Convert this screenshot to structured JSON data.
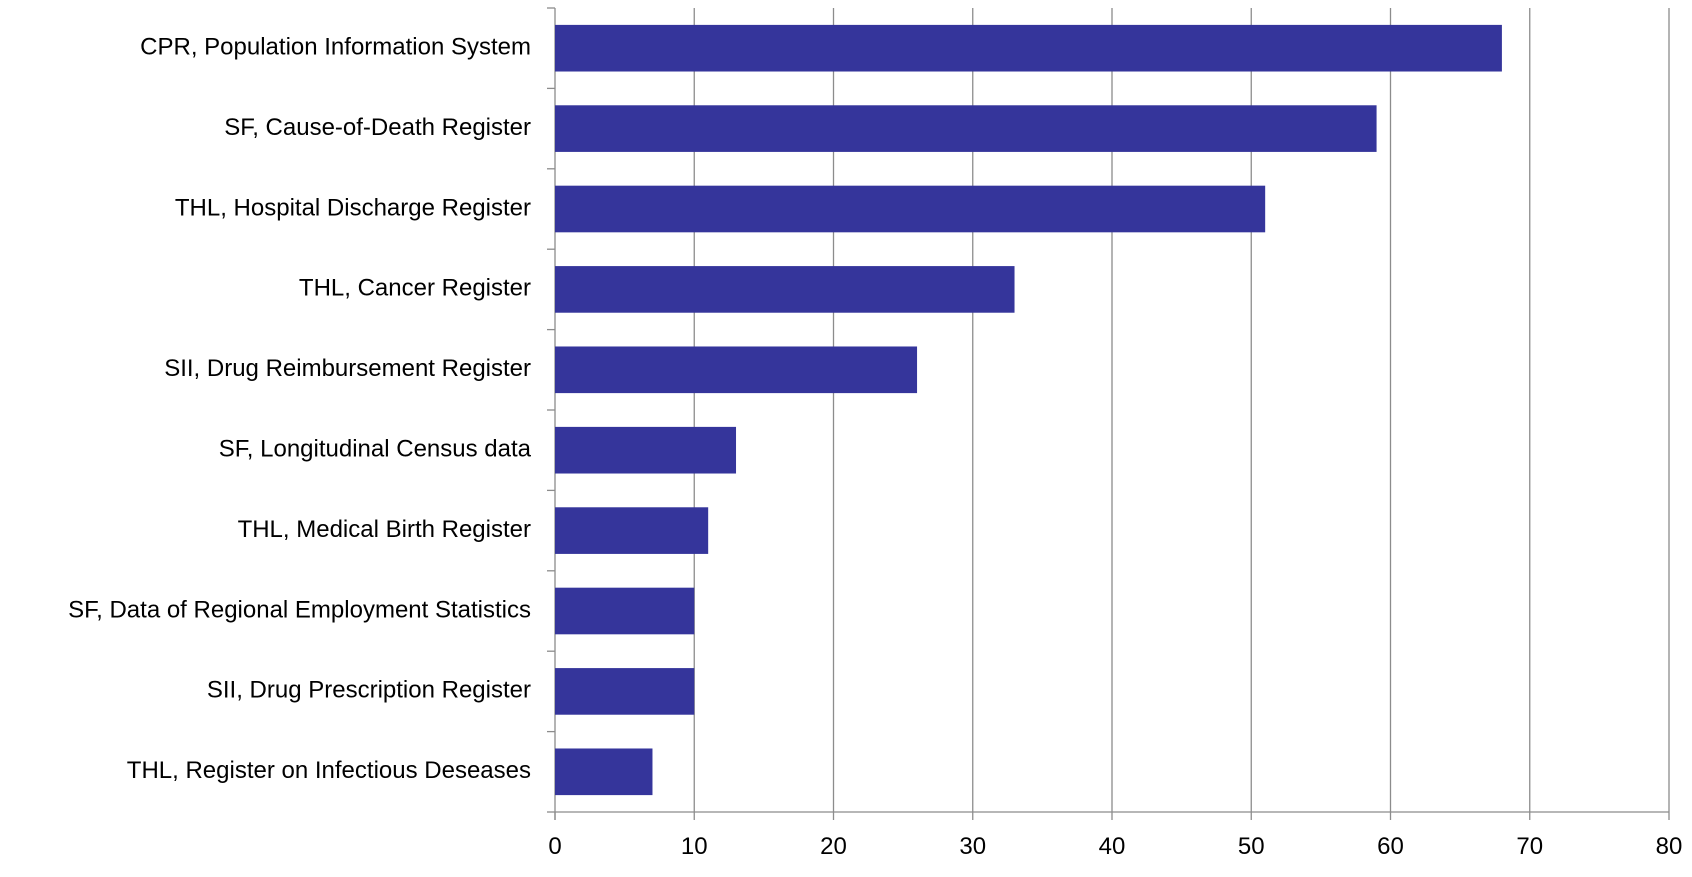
{
  "chart_data": {
    "type": "bar",
    "orientation": "horizontal",
    "title": "",
    "xlabel": "",
    "ylabel": "",
    "categories": [
      "CPR, Population Information System",
      "SF, Cause-of-Death Register",
      "THL, Hospital Discharge Register",
      "THL, Cancer Register",
      "SII, Drug Reimbursement Register",
      "SF, Longitudinal Census data",
      "THL, Medical Birth Register",
      "SF, Data of Regional Employment Statistics",
      "SII, Drug Prescription Register",
      "THL, Register on Infectious Deseases"
    ],
    "values": [
      68,
      59,
      51,
      33,
      26,
      13,
      11,
      10,
      10,
      7
    ],
    "xlim": [
      0,
      80
    ],
    "xticks": [
      "0",
      "10",
      "20",
      "30",
      "40",
      "50",
      "60",
      "70",
      "80"
    ],
    "grid": "vertical",
    "legend": "none",
    "colors": {
      "bar": "#35359B",
      "grid": "#8C8C8C",
      "axis": "#8C8C8C"
    }
  }
}
